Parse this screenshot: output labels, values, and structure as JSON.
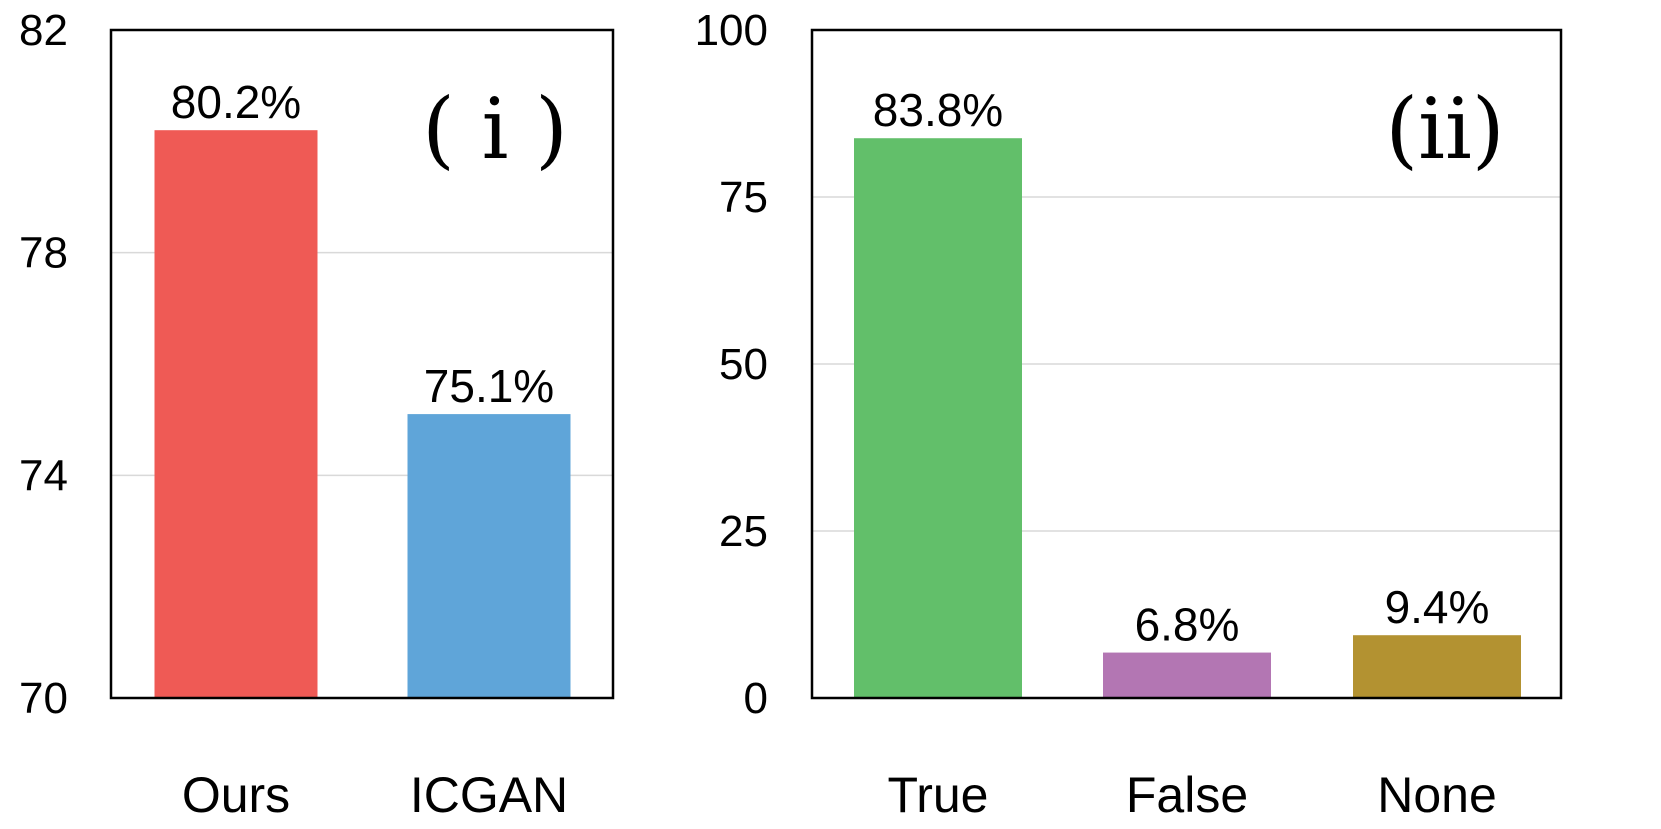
{
  "chart_data": [
    {
      "type": "bar",
      "panel_label": "( i )",
      "categories": [
        "Ours",
        "ICGAN"
      ],
      "values": [
        80.2,
        75.1
      ],
      "data_labels": [
        "80.2%",
        "75.1%"
      ],
      "colors": [
        "#ef5a55",
        "#5fa5d9"
      ],
      "ylim": [
        70,
        82
      ],
      "yticks": [
        70,
        74,
        78,
        82
      ],
      "grid": true,
      "title": "",
      "xlabel": "",
      "ylabel": ""
    },
    {
      "type": "bar",
      "panel_label": "(ii)",
      "categories": [
        "True",
        "False",
        "None"
      ],
      "values": [
        83.8,
        6.8,
        9.4
      ],
      "data_labels": [
        "83.8%",
        "6.8%",
        "9.4%"
      ],
      "colors": [
        "#62bf6a",
        "#b376b3",
        "#b39231"
      ],
      "ylim": [
        0,
        100
      ],
      "yticks": [
        0,
        25,
        50,
        75,
        100
      ],
      "grid": true,
      "title": "",
      "xlabel": "",
      "ylabel": ""
    }
  ]
}
